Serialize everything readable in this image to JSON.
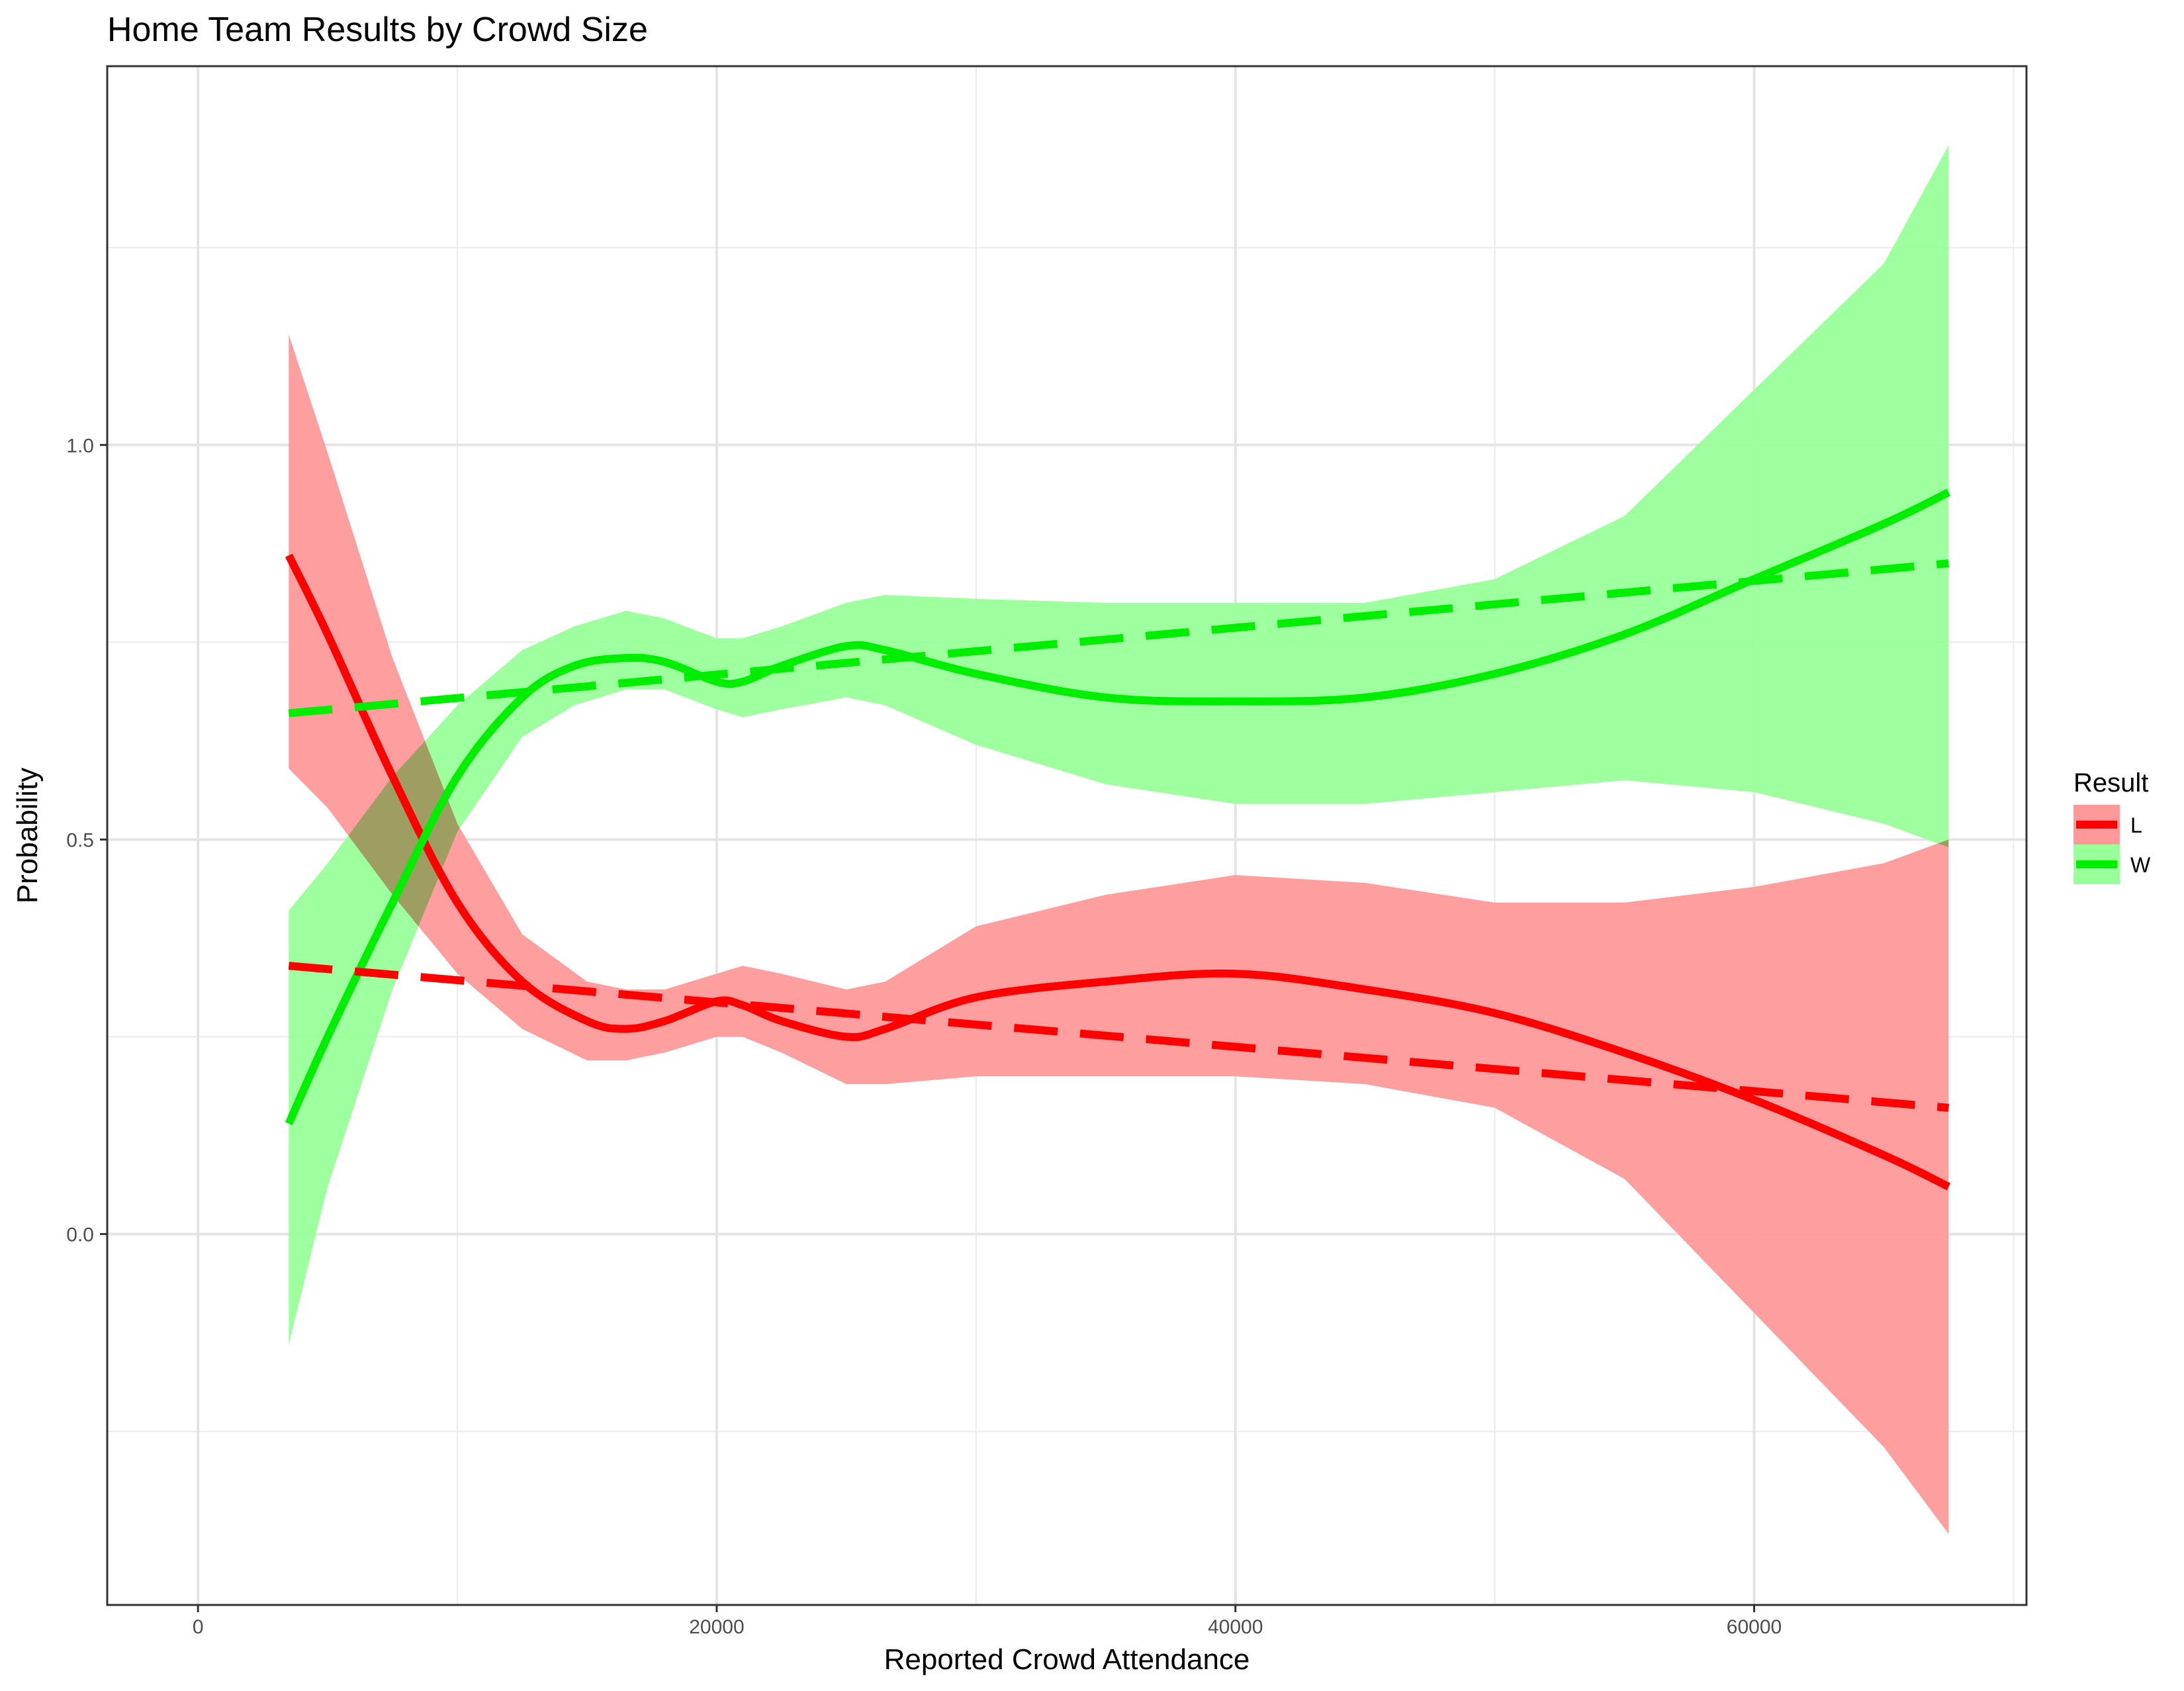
{
  "chart_data": {
    "type": "line",
    "title": "Home Team Results by Crowd Size",
    "xlabel": "Reported Crowd Attendance",
    "ylabel": "Probability",
    "xlim": [
      -3500,
      70500
    ],
    "ylim": [
      -0.47,
      1.48
    ],
    "x_ticks": [
      0,
      20000,
      40000,
      60000
    ],
    "x_tick_labels": [
      "0",
      "20000",
      "40000",
      "60000"
    ],
    "x_minor_ticks": [
      10000,
      30000,
      50000,
      70000
    ],
    "y_ticks": [
      0.0,
      0.5,
      1.0
    ],
    "y_tick_labels": [
      "0.0",
      "0.5",
      "1.0"
    ],
    "y_minor_ticks": [
      -0.25,
      0.25,
      0.75,
      1.25
    ],
    "grid": true,
    "legend": {
      "title": "Result",
      "position": "right",
      "entries": [
        "L",
        "W"
      ]
    },
    "series": [
      {
        "name": "L",
        "color": "#ff0000",
        "band_color": "#ff9999",
        "smooth": {
          "x": [
            3500,
            5000,
            7500,
            10000,
            12500,
            15000,
            16500,
            18000,
            20000,
            21000,
            22500,
            25000,
            26500,
            30000,
            35000,
            40000,
            45000,
            50000,
            55000,
            60000,
            65000,
            67500
          ],
          "y": [
            0.86,
            0.76,
            0.58,
            0.42,
            0.32,
            0.27,
            0.26,
            0.27,
            0.295,
            0.29,
            0.27,
            0.25,
            0.26,
            0.3,
            0.32,
            0.33,
            0.31,
            0.28,
            0.23,
            0.17,
            0.1,
            0.06
          ],
          "lower": [
            0.59,
            0.54,
            0.43,
            0.33,
            0.26,
            0.22,
            0.22,
            0.23,
            0.25,
            0.25,
            0.23,
            0.19,
            0.19,
            0.2,
            0.2,
            0.2,
            0.19,
            0.16,
            0.07,
            -0.1,
            -0.27,
            -0.38
          ],
          "upper": [
            1.14,
            0.99,
            0.73,
            0.52,
            0.38,
            0.32,
            0.31,
            0.31,
            0.33,
            0.34,
            0.33,
            0.31,
            0.32,
            0.39,
            0.43,
            0.455,
            0.445,
            0.42,
            0.42,
            0.44,
            0.47,
            0.5
          ]
        },
        "linear": {
          "x": [
            3500,
            67500
          ],
          "y": [
            0.34,
            0.16
          ]
        }
      },
      {
        "name": "W",
        "color": "#00ee00",
        "band_color": "#99ff99",
        "smooth": {
          "x": [
            3500,
            5000,
            7500,
            10000,
            12500,
            14500,
            16500,
            18000,
            20000,
            21000,
            22500,
            25000,
            26500,
            30000,
            35000,
            40000,
            45000,
            50000,
            55000,
            60000,
            65000,
            67500
          ],
          "y": [
            0.14,
            0.25,
            0.42,
            0.58,
            0.68,
            0.72,
            0.73,
            0.725,
            0.7,
            0.7,
            0.72,
            0.745,
            0.74,
            0.71,
            0.68,
            0.675,
            0.68,
            0.71,
            0.76,
            0.83,
            0.9,
            0.94
          ],
          "lower": [
            -0.14,
            0.06,
            0.31,
            0.51,
            0.63,
            0.67,
            0.69,
            0.69,
            0.665,
            0.655,
            0.665,
            0.68,
            0.67,
            0.62,
            0.57,
            0.545,
            0.545,
            0.56,
            0.575,
            0.56,
            0.52,
            0.49
          ],
          "upper": [
            0.41,
            0.47,
            0.58,
            0.67,
            0.74,
            0.77,
            0.79,
            0.78,
            0.755,
            0.755,
            0.77,
            0.8,
            0.81,
            0.805,
            0.8,
            0.8,
            0.8,
            0.83,
            0.91,
            1.07,
            1.23,
            1.38
          ]
        },
        "linear": {
          "x": [
            3500,
            67500
          ],
          "y": [
            0.66,
            0.85
          ]
        }
      }
    ]
  }
}
